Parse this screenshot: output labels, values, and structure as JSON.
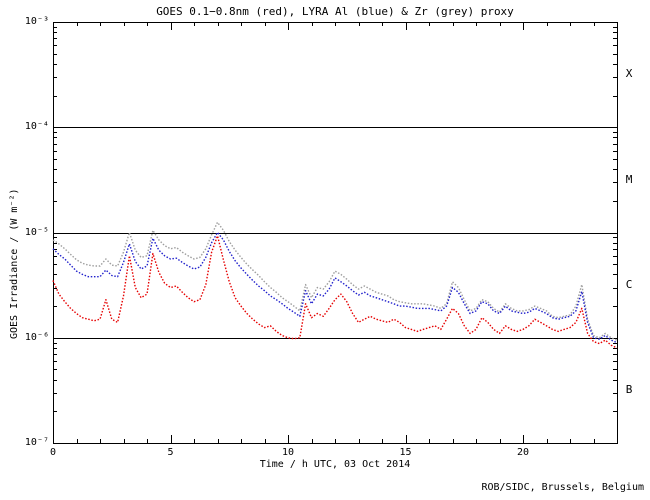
{
  "footer": {
    "credit": "ROB/SIDC, Brussels, Belgium"
  },
  "chart_data": {
    "type": "line",
    "style": "dotted-points, log y-axis",
    "title": "GOES 0.1−0.8nm (red), LYRA Al (blue) & Zr (grey) proxy",
    "xlabel": "Time / h UTC, 03 Oct 2014",
    "ylabel": "GOES Irradiance / (W m⁻²)",
    "x_range": [
      0,
      24
    ],
    "x_major_ticks": [
      0,
      5,
      10,
      15,
      20
    ],
    "x_minor_step": 1,
    "y_scale": "log",
    "y_range": [
      1e-07,
      0.001
    ],
    "y_tick_exponents": [
      -3,
      -4,
      -5,
      -6,
      -7
    ],
    "hlines": [
      0.0001,
      1e-05,
      1e-06
    ],
    "class_labels": [
      "X",
      "M",
      "C",
      "B"
    ],
    "legend_position": "none",
    "axis_color": "#000000",
    "x_step": 0.25,
    "x_start": 0,
    "value_scale": 1e-06,
    "unit": "W m-2",
    "series": [
      {
        "name": "LYRA Zr proxy",
        "color": "#9e9e9e",
        "values": [
          8.5,
          7.8,
          7.0,
          6.2,
          5.5,
          5.1,
          4.9,
          4.8,
          4.8,
          5.6,
          4.9,
          4.8,
          6.5,
          10.0,
          6.8,
          5.8,
          6.0,
          10.5,
          8.5,
          7.5,
          7.0,
          7.2,
          6.5,
          6.0,
          5.6,
          5.8,
          7.0,
          9.5,
          12.5,
          10.5,
          8.2,
          6.8,
          5.8,
          5.0,
          4.4,
          3.9,
          3.4,
          3.0,
          2.7,
          2.4,
          2.2,
          2.0,
          1.8,
          3.2,
          2.4,
          3.0,
          2.9,
          3.4,
          4.3,
          4.0,
          3.6,
          3.2,
          2.9,
          3.1,
          2.9,
          2.7,
          2.6,
          2.5,
          2.3,
          2.2,
          2.15,
          2.1,
          2.1,
          2.1,
          2.05,
          2.0,
          1.9,
          2.1,
          3.4,
          3.0,
          2.3,
          1.8,
          1.9,
          2.3,
          2.2,
          1.9,
          1.75,
          2.1,
          1.9,
          1.8,
          1.8,
          1.85,
          2.0,
          1.9,
          1.8,
          1.6,
          1.55,
          1.6,
          1.65,
          2.0,
          3.2,
          1.5,
          1.05,
          1.0,
          1.1,
          1.0,
          0.95
        ]
      },
      {
        "name": "LYRA Al proxy",
        "color": "#2020cc",
        "values": [
          7.0,
          6.2,
          5.6,
          4.9,
          4.3,
          4.0,
          3.8,
          3.8,
          3.8,
          4.4,
          3.9,
          3.8,
          5.2,
          7.8,
          5.3,
          4.5,
          4.8,
          8.8,
          6.8,
          6.0,
          5.6,
          5.7,
          5.2,
          4.8,
          4.5,
          4.7,
          5.8,
          8.0,
          10.0,
          8.5,
          6.6,
          5.4,
          4.6,
          4.0,
          3.5,
          3.1,
          2.8,
          2.5,
          2.3,
          2.1,
          1.9,
          1.75,
          1.6,
          2.8,
          2.1,
          2.6,
          2.5,
          2.9,
          3.7,
          3.4,
          3.1,
          2.8,
          2.55,
          2.7,
          2.5,
          2.4,
          2.3,
          2.2,
          2.1,
          2.0,
          2.0,
          1.95,
          1.9,
          1.9,
          1.9,
          1.85,
          1.8,
          2.0,
          3.0,
          2.7,
          2.1,
          1.7,
          1.8,
          2.2,
          2.1,
          1.8,
          1.7,
          2.0,
          1.8,
          1.75,
          1.7,
          1.75,
          1.9,
          1.8,
          1.7,
          1.55,
          1.5,
          1.55,
          1.6,
          1.8,
          2.75,
          1.4,
          1.0,
          0.97,
          1.05,
          0.95,
          0.9
        ]
      },
      {
        "name": "GOES 0.1-0.8nm",
        "color": "#e60000",
        "values": [
          3.5,
          2.6,
          2.2,
          1.9,
          1.7,
          1.55,
          1.5,
          1.45,
          1.5,
          2.3,
          1.5,
          1.4,
          2.5,
          6.0,
          3.0,
          2.4,
          2.6,
          6.3,
          4.2,
          3.3,
          3.0,
          3.1,
          2.7,
          2.4,
          2.2,
          2.3,
          3.2,
          6.5,
          9.3,
          5.5,
          3.4,
          2.4,
          2.0,
          1.7,
          1.5,
          1.35,
          1.25,
          1.3,
          1.15,
          1.05,
          1.0,
          0.98,
          1.0,
          2.1,
          1.55,
          1.7,
          1.6,
          1.9,
          2.3,
          2.6,
          2.2,
          1.7,
          1.4,
          1.5,
          1.6,
          1.5,
          1.45,
          1.4,
          1.5,
          1.4,
          1.25,
          1.2,
          1.15,
          1.2,
          1.25,
          1.3,
          1.2,
          1.5,
          1.9,
          1.7,
          1.3,
          1.1,
          1.2,
          1.55,
          1.4,
          1.2,
          1.1,
          1.3,
          1.2,
          1.15,
          1.2,
          1.3,
          1.5,
          1.4,
          1.3,
          1.2,
          1.15,
          1.2,
          1.25,
          1.4,
          1.9,
          1.1,
          0.92,
          0.88,
          0.95,
          0.85,
          0.8
        ]
      }
    ]
  }
}
